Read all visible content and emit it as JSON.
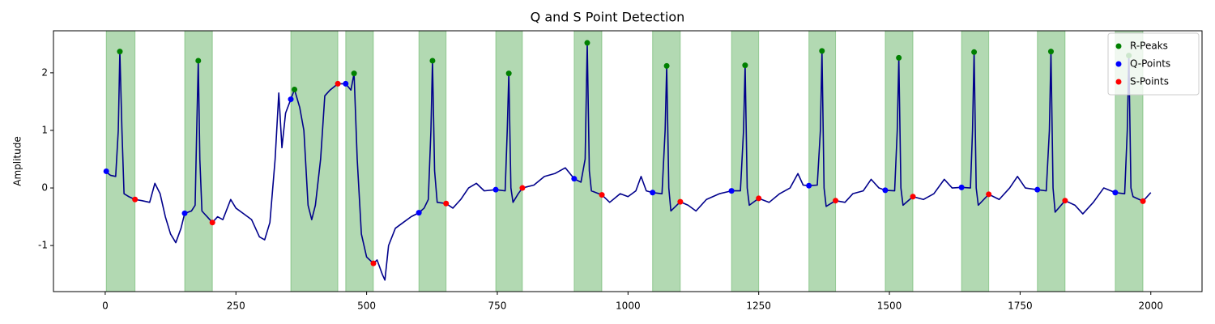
{
  "chart_data": {
    "type": "line",
    "title": "Q and S Point Detection",
    "ylabel": "Amplitude",
    "xlim": [
      -99,
      2098
    ],
    "ylim": [
      -1.8,
      2.73
    ],
    "xticks": [
      0,
      250,
      500,
      750,
      1000,
      1250,
      1500,
      1750,
      2000
    ],
    "yticks": [
      -1,
      0,
      1,
      2
    ],
    "legend": "upper right",
    "span_color": "#008000",
    "spans": [
      [
        2,
        57
      ],
      [
        152,
        205
      ],
      [
        355,
        445
      ],
      [
        460,
        513
      ],
      [
        600,
        652
      ],
      [
        747,
        798
      ],
      [
        897,
        950
      ],
      [
        1047,
        1100
      ],
      [
        1198,
        1250
      ],
      [
        1346,
        1397
      ],
      [
        1492,
        1545
      ],
      [
        1638,
        1690
      ],
      [
        1783,
        1836
      ],
      [
        1932,
        1985
      ]
    ],
    "series": [
      {
        "color": "#00008b",
        "x": [
          0,
          10,
          20,
          25,
          28,
          32,
          36,
          45,
          57,
          70,
          85,
          95,
          105,
          115,
          125,
          135,
          145,
          152,
          165,
          172,
          175,
          178,
          181,
          185,
          195,
          205,
          215,
          225,
          240,
          250,
          265,
          280,
          295,
          305,
          315,
          325,
          332,
          338,
          345,
          355,
          362,
          372,
          380,
          388,
          395,
          402,
          412,
          420,
          430,
          445,
          460,
          470,
          476,
          482,
          490,
          500,
          513,
          520,
          530,
          535,
          542,
          555,
          570,
          585,
          600,
          610,
          618,
          623,
          626,
          630,
          635,
          652,
          665,
          680,
          695,
          710,
          725,
          747,
          765,
          769,
          772,
          776,
          780,
          790,
          798,
          820,
          840,
          860,
          880,
          897,
          910,
          918,
          922,
          926,
          930,
          950,
          965,
          985,
          1000,
          1015,
          1025,
          1035,
          1047,
          1065,
          1071,
          1074,
          1078,
          1082,
          1100,
          1115,
          1130,
          1150,
          1175,
          1198,
          1215,
          1221,
          1224,
          1228,
          1232,
          1250,
          1270,
          1290,
          1310,
          1325,
          1335,
          1346,
          1362,
          1368,
          1371,
          1375,
          1379,
          1397,
          1415,
          1430,
          1450,
          1465,
          1480,
          1492,
          1510,
          1515,
          1518,
          1522,
          1526,
          1545,
          1565,
          1585,
          1605,
          1620,
          1638,
          1655,
          1659,
          1662,
          1666,
          1670,
          1690,
          1710,
          1730,
          1745,
          1760,
          1783,
          1800,
          1806,
          1809,
          1813,
          1817,
          1836,
          1855,
          1870,
          1890,
          1910,
          1932,
          1950,
          1955,
          1958,
          1962,
          1966,
          1985,
          2000
        ],
        "values": [
          0.29,
          0.22,
          0.2,
          1.0,
          2.37,
          1.0,
          -0.1,
          -0.15,
          -0.2,
          -0.22,
          -0.25,
          0.08,
          -0.1,
          -0.5,
          -0.8,
          -0.95,
          -0.7,
          -0.44,
          -0.4,
          -0.3,
          1.0,
          2.21,
          0.5,
          -0.4,
          -0.5,
          -0.6,
          -0.5,
          -0.55,
          -0.2,
          -0.35,
          -0.45,
          -0.55,
          -0.85,
          -0.9,
          -0.6,
          0.5,
          1.65,
          0.7,
          1.3,
          1.54,
          1.71,
          1.4,
          1.0,
          -0.3,
          -0.55,
          -0.3,
          0.5,
          1.6,
          1.7,
          1.81,
          1.81,
          1.7,
          1.99,
          0.5,
          -0.8,
          -1.2,
          -1.31,
          -1.25,
          -1.5,
          -1.6,
          -1.0,
          -0.7,
          -0.6,
          -0.5,
          -0.43,
          -0.35,
          -0.2,
          1.0,
          2.21,
          0.3,
          -0.25,
          -0.27,
          -0.35,
          -0.2,
          0.0,
          0.08,
          -0.05,
          -0.03,
          -0.05,
          1.0,
          1.99,
          0.0,
          -0.25,
          -0.1,
          0.0,
          0.05,
          0.2,
          0.25,
          0.35,
          0.16,
          0.1,
          0.5,
          2.52,
          0.3,
          -0.05,
          -0.12,
          -0.25,
          -0.1,
          -0.15,
          -0.05,
          0.2,
          -0.05,
          -0.08,
          -0.1,
          1.0,
          2.12,
          0.0,
          -0.4,
          -0.24,
          -0.3,
          -0.4,
          -0.2,
          -0.1,
          -0.05,
          -0.05,
          1.0,
          2.13,
          0.0,
          -0.3,
          -0.18,
          -0.25,
          -0.1,
          0.0,
          0.25,
          0.05,
          0.04,
          0.05,
          1.0,
          2.38,
          0.0,
          -0.32,
          -0.22,
          -0.25,
          -0.1,
          -0.05,
          0.15,
          0.0,
          -0.04,
          -0.05,
          1.0,
          2.26,
          0.0,
          -0.3,
          -0.15,
          -0.2,
          -0.1,
          0.15,
          0.0,
          0.01,
          0.0,
          1.0,
          2.36,
          0.0,
          -0.3,
          -0.11,
          -0.2,
          0.0,
          0.2,
          0.0,
          -0.03,
          -0.05,
          1.0,
          2.37,
          0.0,
          -0.42,
          -0.22,
          -0.3,
          -0.45,
          -0.25,
          0.0,
          -0.08,
          -0.1,
          1.0,
          2.3,
          0.0,
          -0.15,
          -0.23,
          -0.08
        ]
      },
      {
        "name": "R-Peaks",
        "color": "#008000",
        "marker": true,
        "x": [
          28,
          178,
          362,
          476,
          626,
          772,
          922,
          1074,
          1224,
          1371,
          1518,
          1662,
          1809,
          1958
        ],
        "values": [
          2.37,
          2.21,
          1.71,
          1.99,
          2.21,
          1.99,
          2.52,
          2.12,
          2.13,
          2.38,
          2.26,
          2.36,
          2.37,
          2.3
        ]
      },
      {
        "name": "Q-Points",
        "color": "#0000ff",
        "marker": true,
        "x": [
          2,
          152,
          355,
          460,
          600,
          747,
          897,
          1047,
          1198,
          1346,
          1492,
          1638,
          1783,
          1932
        ],
        "values": [
          0.29,
          -0.44,
          1.54,
          1.81,
          -0.43,
          -0.03,
          0.16,
          -0.08,
          -0.05,
          0.04,
          -0.04,
          0.01,
          -0.03,
          -0.08
        ]
      },
      {
        "name": "S-Points",
        "color": "#ff0000",
        "marker": true,
        "x": [
          57,
          205,
          445,
          513,
          652,
          798,
          950,
          1100,
          1250,
          1397,
          1545,
          1690,
          1836,
          1985
        ],
        "values": [
          -0.2,
          -0.6,
          1.81,
          -1.31,
          -0.27,
          0.0,
          -0.12,
          -0.24,
          -0.18,
          -0.22,
          -0.15,
          -0.11,
          -0.22,
          -0.23
        ]
      }
    ]
  }
}
